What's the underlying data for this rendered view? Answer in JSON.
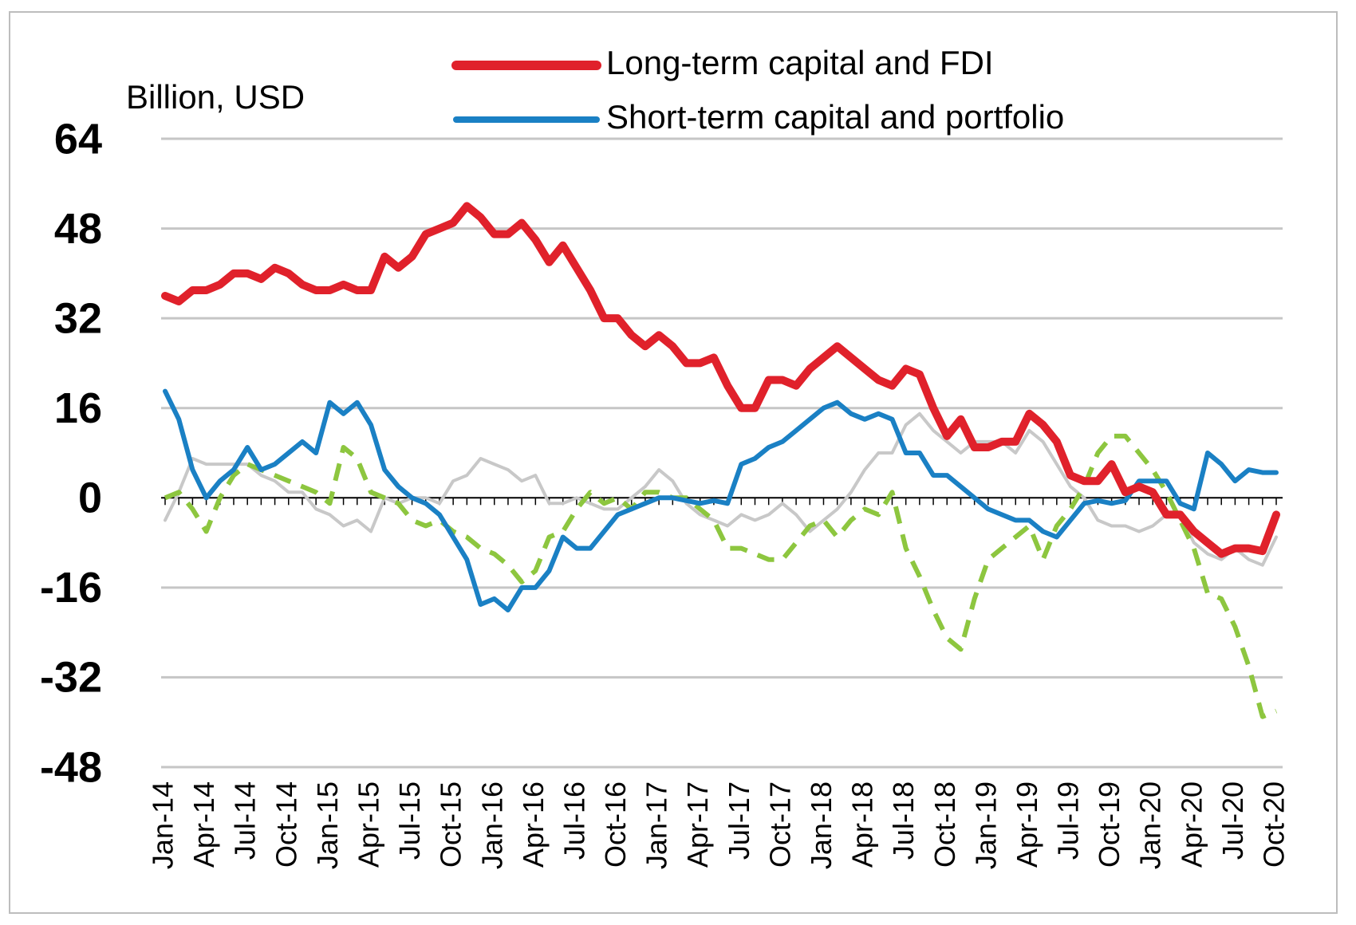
{
  "chart_data": {
    "type": "line",
    "y_axis_label": "Billion, USD",
    "categories": [
      "Jan-14",
      null,
      null,
      "Apr-14",
      null,
      null,
      "Jul-14",
      null,
      null,
      "Oct-14",
      null,
      null,
      "Jan-15",
      null,
      null,
      "Apr-15",
      null,
      null,
      "Jul-15",
      null,
      null,
      "Oct-15",
      null,
      null,
      "Jan-16",
      null,
      null,
      "Apr-16",
      null,
      null,
      "Jul-16",
      null,
      null,
      "Oct-16",
      null,
      null,
      "Jan-17",
      null,
      null,
      "Apr-17",
      null,
      null,
      "Jul-17",
      null,
      null,
      "Oct-17",
      null,
      null,
      "Jan-18",
      null,
      null,
      "Apr-18",
      null,
      null,
      "Jul-18",
      null,
      null,
      "Oct-18",
      null,
      null,
      "Jan-19",
      null,
      null,
      "Apr-19",
      null,
      null,
      "Jul-19",
      null,
      null,
      "Oct-19",
      null,
      null,
      "Jan-20",
      null,
      null,
      "Apr-20",
      null,
      null,
      "Jul-20",
      null,
      null,
      "Oct-20"
    ],
    "series": [
      {
        "name": "Long-term capital and FDI",
        "color": "#e0212b",
        "width": 10,
        "values": [
          36,
          35,
          37,
          37,
          38,
          40,
          40,
          39,
          41,
          40,
          38,
          37,
          37,
          38,
          37,
          37,
          43,
          41,
          43,
          47,
          48,
          49,
          52,
          50,
          47,
          47,
          49,
          46,
          42,
          45,
          41,
          37,
          32,
          32,
          29,
          27,
          29,
          27,
          24,
          24,
          25,
          20,
          16,
          16,
          21,
          21,
          20,
          23,
          25,
          27,
          25,
          23,
          21,
          20,
          23,
          22,
          16,
          11,
          14,
          9,
          9,
          10,
          10,
          15,
          13,
          10,
          4,
          3,
          3,
          6,
          1,
          2,
          1,
          -3,
          -3,
          -6,
          -8,
          -10,
          -9,
          -9,
          -9.5,
          -3
        ]
      },
      {
        "name": "Short-term capital and portfolio",
        "color": "#1a80c4",
        "width": 6,
        "values": [
          19,
          14,
          5,
          0,
          3,
          5,
          9,
          5,
          6,
          8,
          10,
          8,
          17,
          15,
          17,
          13,
          5,
          2,
          0,
          -1,
          -3,
          -7,
          -11,
          -19,
          -18,
          -20,
          -16,
          -16,
          -13,
          -7,
          -9,
          -9,
          -6,
          -3,
          -2,
          -1,
          0,
          0,
          -0.5,
          -1,
          -0.5,
          -1,
          6,
          7,
          9,
          10,
          12,
          14,
          16,
          17,
          15,
          14,
          15,
          14,
          8,
          8,
          4,
          4,
          2,
          0,
          -2,
          -3,
          -4,
          -4,
          -6,
          -7,
          -4,
          -1,
          -0.5,
          -1,
          -0.5,
          3,
          3,
          3,
          -1,
          -2,
          8,
          6,
          3,
          5,
          4.5,
          4.5
        ]
      },
      {
        "color": "#c8c8c8",
        "width": 4,
        "values": [
          -4,
          1,
          7,
          6,
          6,
          6,
          6,
          4,
          3,
          1,
          1,
          -2,
          -3,
          -5,
          -4,
          -6,
          0,
          -1,
          0,
          0,
          -1,
          3,
          4,
          7,
          6,
          5,
          3,
          4,
          -1,
          -1,
          0,
          -1,
          -2,
          -2,
          0,
          2,
          5,
          3,
          -1,
          -3,
          -4,
          -5,
          -3,
          -4,
          -3,
          -1,
          -3,
          -6,
          -4,
          -2,
          1,
          5,
          8,
          8,
          13,
          15,
          12,
          10,
          8,
          10,
          10,
          10,
          8,
          12,
          10,
          6,
          2,
          0,
          -4,
          -5,
          -5,
          -6,
          -5,
          -3,
          -3,
          -8,
          -10,
          -11,
          -9,
          -11,
          -12,
          -7
        ]
      },
      {
        "color": "#8dc63f",
        "width": 6,
        "dashed": true,
        "values": [
          0,
          1,
          -2,
          -6,
          0,
          4,
          6,
          5,
          4,
          3,
          2,
          1,
          -1,
          9,
          7,
          1,
          0,
          -1,
          -4,
          -5,
          -4,
          -6,
          -7,
          -9,
          -10,
          -12,
          -15,
          -13,
          -7,
          -6,
          -2,
          1,
          -1,
          0,
          -2,
          1,
          1,
          0,
          0,
          -2,
          -4,
          -9,
          -9,
          -10,
          -11,
          -11,
          -8,
          -5,
          -4,
          -7,
          -4,
          -2,
          -3,
          1,
          -9,
          -14,
          -20,
          -25,
          -27,
          -18,
          -11,
          -9,
          -7,
          -5,
          -11,
          -5,
          -2,
          2,
          8,
          11,
          11,
          8,
          5,
          1,
          -4,
          -9,
          -17,
          -18,
          -23,
          -30,
          -39,
          -38
        ]
      }
    ],
    "ylim": [
      -48,
      64
    ],
    "yticks": [
      64,
      48,
      32,
      16,
      0,
      -16,
      -32,
      -48
    ],
    "grid": true
  }
}
